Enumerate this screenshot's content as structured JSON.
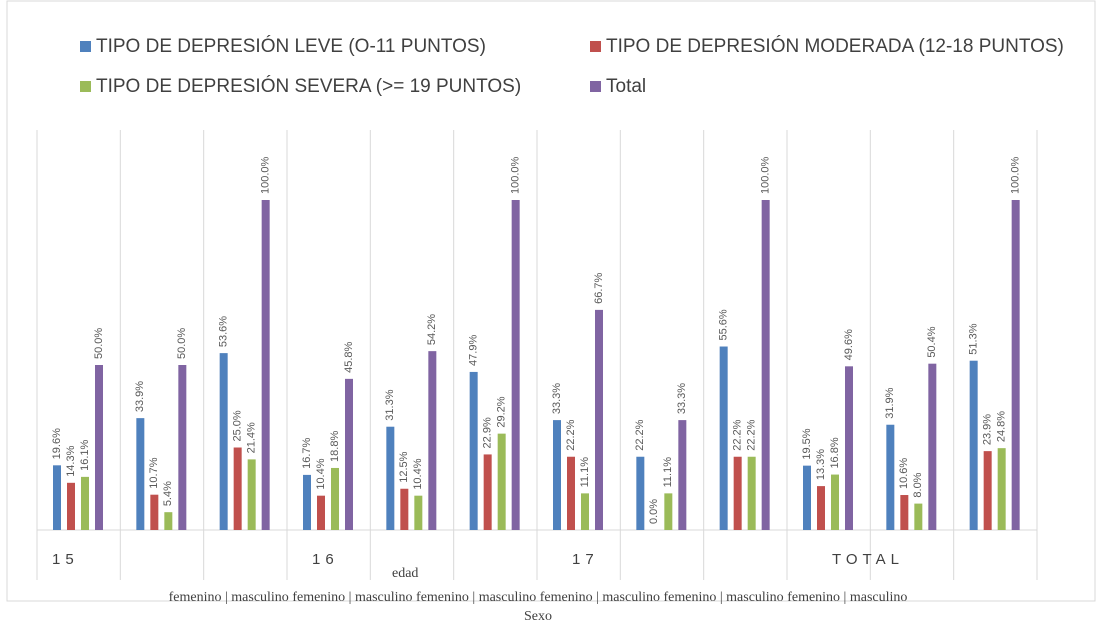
{
  "chart_data": {
    "type": "bar",
    "groups": [
      "15",
      "16",
      "17",
      "TOTAL"
    ],
    "group_axis_label": "edad",
    "sex_labels": [
      "femenino | masculino",
      "femenino | masculino",
      "femenino | masculino",
      "femenino | masculino",
      "femenino | masculino",
      "femenino | masculino"
    ],
    "sex_axis_label": "Sexo",
    "ylim": [
      0,
      100
    ],
    "series": [
      {
        "name": "TIPO DE DEPRESIÓN LEVE (O-11 PUNTOS)",
        "color": "#4f81bd",
        "values": [
          19.6,
          33.9,
          53.6,
          16.7,
          31.3,
          47.9,
          33.3,
          22.2,
          55.6,
          19.5,
          31.9,
          51.3
        ],
        "value_labels": [
          "19.6%",
          "33.9%",
          "53.6%",
          "16.7%",
          "31.3%",
          "47.9%",
          "33.3%",
          "22.2%",
          "55.6%",
          "19.5%",
          "31.9%",
          "51.3%"
        ]
      },
      {
        "name": "TIPO DE DEPRESIÓN MODERADA (12-18 PUNTOS)",
        "color": "#c0504d",
        "values": [
          14.3,
          10.7,
          25.0,
          10.4,
          12.5,
          22.9,
          22.2,
          0.0,
          22.2,
          13.3,
          10.6,
          23.9
        ],
        "value_labels": [
          "14.3%",
          "10.7%",
          "25.0%",
          "10.4%",
          "12.5%",
          "22.9%",
          "22.2%",
          "0.0%",
          "22.2%",
          "13.3%",
          "10.6%",
          "23.9%"
        ]
      },
      {
        "name": "TIPO DE DEPRESIÓN SEVERA (>= 19 PUNTOS)",
        "color": "#9bbb59",
        "values": [
          16.1,
          5.4,
          21.4,
          18.8,
          10.4,
          29.2,
          11.1,
          11.1,
          22.2,
          16.8,
          8.0,
          24.8
        ],
        "value_labels": [
          "16.1%",
          "5.4%",
          "21.4%",
          "18.8%",
          "10.4%",
          "29.2%",
          "11.1%",
          "11.1%",
          "22.2%",
          "16.8%",
          "8.0%",
          "24.8%"
        ]
      },
      {
        "name": "Total",
        "color": "#8064a2",
        "values": [
          50.0,
          50.0,
          100.0,
          45.8,
          54.2,
          100.0,
          66.7,
          33.3,
          100.0,
          49.6,
          50.4,
          100.0
        ],
        "value_labels": [
          "50.0%",
          "50.0%",
          "100.0%",
          "45.8%",
          "54.2%",
          "100.0%",
          "66.7%",
          "33.3%",
          "100.0%",
          "49.6%",
          "50.4%",
          "100.0%"
        ]
      }
    ]
  }
}
